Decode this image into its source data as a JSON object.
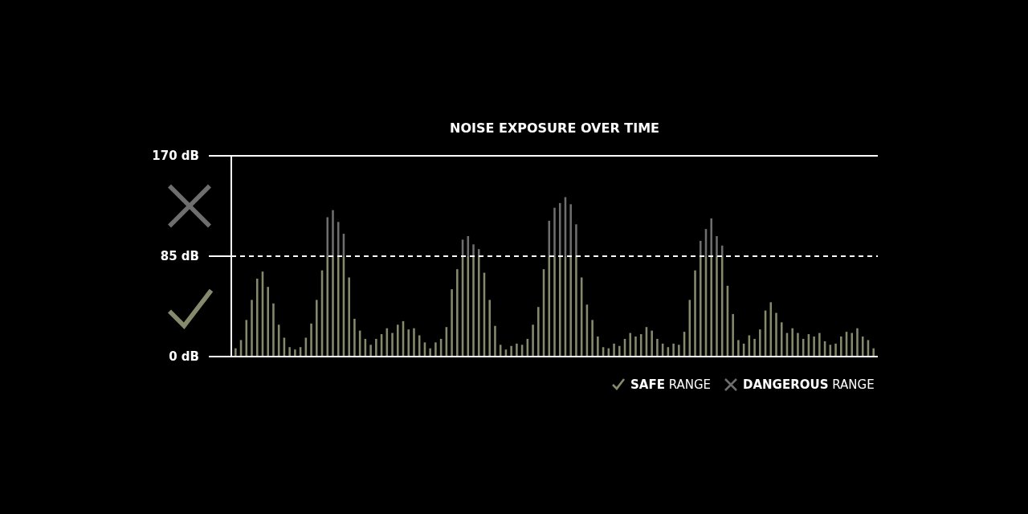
{
  "chart_data": {
    "type": "bar",
    "title": "NOISE EXPOSURE OVER TIME",
    "stacked": true,
    "categories": [
      null,
      null,
      null,
      null,
      null,
      null,
      null,
      null,
      null,
      null,
      null,
      null,
      null,
      null,
      null,
      null,
      null,
      null,
      null,
      null,
      null,
      null,
      null,
      null,
      null,
      null,
      null,
      null,
      null,
      null,
      null,
      null,
      null,
      null,
      null,
      null,
      null,
      null,
      null,
      null,
      null,
      null,
      null,
      null,
      null,
      null,
      null,
      null,
      null,
      null,
      null,
      null,
      null,
      null,
      null,
      null,
      null,
      null,
      null,
      null,
      null,
      null,
      null,
      null,
      null,
      null,
      null,
      null,
      null,
      null,
      null,
      null,
      null,
      null,
      null,
      null,
      null,
      null,
      null,
      null,
      null,
      null,
      null,
      null,
      null,
      null,
      null,
      null,
      null,
      null,
      null,
      null,
      null,
      null,
      null,
      null,
      null,
      null,
      null,
      null,
      null,
      null,
      null,
      null,
      null,
      null,
      null,
      null,
      null,
      null,
      null,
      null,
      null,
      null,
      null,
      null,
      null,
      null,
      null
    ],
    "series": [
      {
        "name": "SAFE RANGE",
        "color": "#858a6c",
        "values": [
          7,
          14,
          31,
          48,
          66,
          72,
          59,
          45,
          27,
          16,
          8,
          6,
          8,
          16,
          28,
          48,
          73,
          85,
          85,
          85,
          85,
          67,
          32,
          22,
          15,
          10,
          15,
          19,
          24,
          20,
          27,
          30,
          23,
          24,
          18,
          12,
          7,
          12,
          15,
          25,
          57,
          74,
          85,
          85,
          85,
          85,
          71,
          48,
          26,
          10,
          6,
          9,
          11,
          10,
          15,
          27,
          42,
          74,
          85,
          85,
          85,
          85,
          85,
          85,
          67,
          44,
          31,
          17,
          8,
          7,
          11,
          9,
          15,
          20,
          17,
          19,
          25,
          22,
          15,
          11,
          8,
          11,
          10,
          21,
          48,
          73,
          85,
          85,
          85,
          85,
          85,
          60,
          36,
          14,
          11,
          18,
          15,
          23,
          39,
          46,
          37,
          29,
          20,
          24,
          20,
          15,
          19,
          17,
          20,
          13,
          10,
          11,
          17,
          21,
          20,
          24,
          17,
          14,
          7
        ]
      },
      {
        "name": "DANGEROUS RANGE",
        "color": "#6e6e6e",
        "values": [
          null,
          null,
          null,
          null,
          null,
          null,
          null,
          null,
          null,
          null,
          null,
          null,
          null,
          null,
          null,
          null,
          null,
          33,
          39,
          29,
          19,
          null,
          null,
          null,
          null,
          null,
          null,
          null,
          null,
          null,
          null,
          null,
          null,
          null,
          null,
          null,
          null,
          null,
          null,
          null,
          null,
          null,
          14,
          17,
          10,
          6,
          null,
          null,
          null,
          null,
          null,
          null,
          null,
          null,
          null,
          null,
          null,
          null,
          30,
          41,
          45,
          50,
          44,
          27,
          null,
          null,
          null,
          null,
          null,
          null,
          null,
          null,
          null,
          null,
          null,
          null,
          null,
          null,
          null,
          null,
          null,
          null,
          null,
          null,
          null,
          null,
          13,
          23,
          32,
          17,
          9,
          null,
          null,
          null,
          null,
          null,
          null,
          null,
          null,
          null,
          null,
          null,
          null,
          null,
          null,
          null,
          null,
          null,
          null,
          null,
          null,
          null,
          null,
          null,
          null,
          null,
          null,
          null,
          null
        ]
      }
    ],
    "ylim": [
      0,
      170
    ],
    "yticks": [
      {
        "value": 0,
        "label": "0 dB"
      },
      {
        "value": 85,
        "label": "85 dB"
      },
      {
        "value": 170,
        "label": "170 dB"
      }
    ],
    "ref_lines": [
      {
        "axis": "y",
        "value": 85,
        "color": "#ffffff",
        "line_style": "dashed"
      }
    ],
    "legend": "bottom right"
  }
}
